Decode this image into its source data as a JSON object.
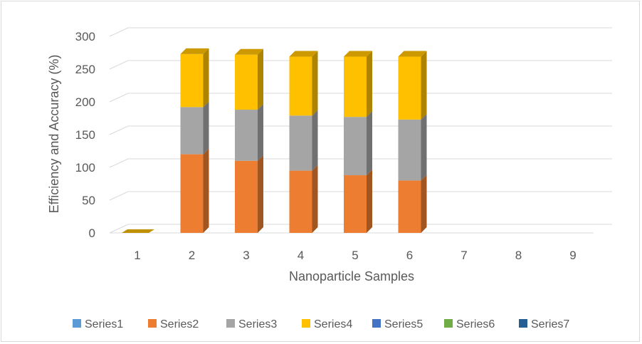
{
  "chart_data": {
    "type": "bar",
    "subtype": "stacked-3d-column",
    "categories": [
      "1",
      "2",
      "3",
      "4",
      "5",
      "6",
      "7",
      "8",
      "9"
    ],
    "series": [
      {
        "name": "Series1",
        "color": "#5b9bd5",
        "values": [
          0,
          0,
          0,
          0,
          0,
          0,
          0,
          0,
          0
        ]
      },
      {
        "name": "Series2",
        "color": "#ed7d31",
        "values": [
          0,
          120,
          110,
          95,
          88,
          80,
          0,
          0,
          0
        ]
      },
      {
        "name": "Series3",
        "color": "#a5a5a5",
        "values": [
          0,
          72,
          78,
          84,
          89,
          93,
          0,
          0,
          0
        ]
      },
      {
        "name": "Series4",
        "color": "#ffc000",
        "values": [
          0,
          81,
          84,
          90,
          92,
          96,
          0,
          0,
          0
        ]
      },
      {
        "name": "Series5",
        "color": "#4472c4",
        "values": [
          0,
          0,
          0,
          0,
          0,
          0,
          0,
          0,
          0
        ]
      },
      {
        "name": "Series6",
        "color": "#70ad47",
        "values": [
          0,
          0,
          0,
          0,
          0,
          0,
          0,
          0,
          0
        ]
      },
      {
        "name": "Series7",
        "color": "#255e91",
        "values": [
          0,
          0,
          0,
          0,
          0,
          0,
          0,
          0,
          0
        ]
      }
    ],
    "yticks": [
      "0",
      "50",
      "100",
      "150",
      "200",
      "250",
      "300"
    ],
    "ylim": [
      0,
      300
    ],
    "xlabel": "Nanoparticle Samples",
    "ylabel": "Efficiency and Accuracy (%)",
    "grid": true,
    "legend_position": "bottom"
  }
}
